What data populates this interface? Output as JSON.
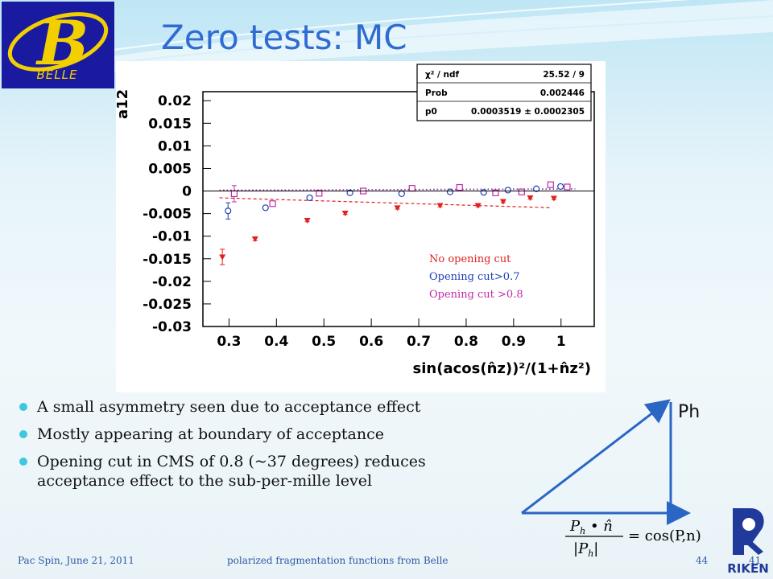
{
  "logo": {
    "letter": "B",
    "text": "BELLE"
  },
  "title": "Zero tests: MC",
  "stats": {
    "rows": [
      {
        "label": "χ² / ndf",
        "value": "25.52 / 9"
      },
      {
        "label": "Prob",
        "value": "0.002446"
      },
      {
        "label": "p0",
        "value": "0.0003519 ± 0.0002305"
      }
    ]
  },
  "legend": [
    {
      "label": "No opening cut",
      "color": "#e02020"
    },
    {
      "label": "Opening cut>0.7",
      "color": "#1f3fb5"
    },
    {
      "label": "Opening cut >0.8",
      "color": "#c02aa8"
    }
  ],
  "chart_data": {
    "type": "scatter",
    "ylabel": "a12",
    "xlabel": "sin(acos(n̂z))²/(1+n̂z²)",
    "xlim": [
      0.245,
      1.07
    ],
    "ylim": [
      -0.03,
      0.022
    ],
    "xticks": [
      "0.3",
      "0.4",
      "0.5",
      "0.6",
      "0.7",
      "0.8",
      "0.9",
      "1"
    ],
    "yticks": [
      "0.02",
      "0.015",
      "0.01",
      "0.005",
      "0",
      "-0.005",
      "-0.01",
      "-0.015",
      "-0.02",
      "-0.025",
      "-0.03"
    ],
    "series": [
      {
        "name": "No opening cut",
        "color": "#e02020",
        "marker": "triangle-down",
        "x": [
          0.286,
          0.355,
          0.465,
          0.545,
          0.655,
          0.745,
          0.825,
          0.878,
          0.935,
          0.985
        ],
        "y": [
          -0.0146,
          -0.0106,
          -0.0065,
          -0.0049,
          -0.0037,
          -0.0032,
          -0.0032,
          -0.0023,
          -0.0015,
          -0.0016
        ],
        "err": [
          0.0017,
          0.0004,
          0.0003,
          0.0003,
          0.0003,
          0.0003,
          0.0003,
          0.0003,
          0.0003,
          0.0003
        ]
      },
      {
        "name": "Opening cut>0.7",
        "color": "#1f3fb5",
        "marker": "circle",
        "x": [
          0.298,
          0.377,
          0.47,
          0.555,
          0.664,
          0.766,
          0.837,
          0.888,
          0.948,
          0.999
        ],
        "y": [
          -0.0044,
          -0.0037,
          -0.0015,
          -0.0004,
          -0.0006,
          -0.0002,
          -0.0003,
          0.0002,
          0.0005,
          0.001
        ],
        "err": [
          0.0018,
          0.0004,
          0.0003,
          0.0003,
          0.0003,
          0.0003,
          0.0003,
          0.0003,
          0.0003,
          0.0003
        ]
      },
      {
        "name": "Opening cut >0.8",
        "color": "#c02aa8",
        "marker": "square",
        "x": [
          0.311,
          0.392,
          0.49,
          0.583,
          0.686,
          0.786,
          0.862,
          0.917,
          0.978,
          1.013
        ],
        "y": [
          -0.0006,
          -0.0028,
          -0.0005,
          0.0,
          0.0006,
          0.0008,
          -0.0004,
          -0.0002,
          0.0014,
          0.0009
        ],
        "err": [
          0.0018,
          0.0004,
          0.0003,
          0.0003,
          0.0003,
          0.0003,
          0.0003,
          0.0003,
          0.0003,
          0.0003
        ]
      }
    ],
    "fits": [
      {
        "series": "No opening cut",
        "x": [
          0.28,
          0.98
        ],
        "y": [
          -0.0015,
          -0.0037
        ],
        "color": "#e02020",
        "style": "dashed"
      },
      {
        "series": "Opening cut>0.7",
        "x": [
          0.28,
          1.03
        ],
        "y": [
          0.0002,
          0.0005
        ],
        "color": "#1f3fb5",
        "style": "dotted"
      },
      {
        "series": "Opening cut >0.8",
        "x": [
          0.28,
          1.03
        ],
        "y": [
          0.0002,
          0.0004
        ],
        "color": "#c02aa8",
        "style": "dotted"
      }
    ]
  },
  "bullets": [
    "A small asymmetry seen due to acceptance effect",
    "Mostly appearing at boundary of acceptance",
    "Opening cut in CMS of 0.8 (~37 degrees) reduces acceptance effect to the sub-per-mille level"
  ],
  "diagram": {
    "label": "Ph"
  },
  "formula": {
    "rhs": "= cos(P,n)"
  },
  "footer": {
    "left": "Pac Spin, June 21, 2011",
    "center": "polarized fragmentation functions from Belle",
    "page": "44",
    "page_overlap": "41"
  }
}
